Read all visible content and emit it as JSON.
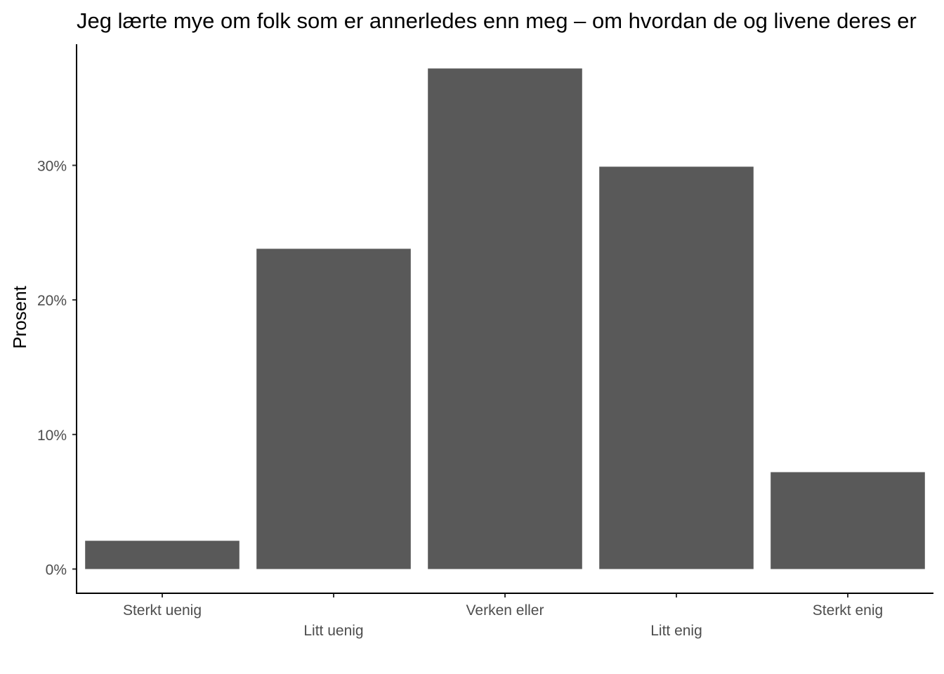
{
  "chart_data": {
    "type": "bar",
    "title": "Jeg lærte mye om folk som er annerledes enn meg – om hvordan de og livene deres er",
    "xlabel": "",
    "ylabel": "Prosent",
    "categories": [
      "Sterkt uenig",
      "Litt uenig",
      "Verken eller",
      "Litt enig",
      "Sterkt enig"
    ],
    "values": [
      2.1,
      23.8,
      37.2,
      29.9,
      7.2
    ],
    "ylim": [
      -1.8,
      39
    ],
    "yticks": [
      0,
      10,
      20,
      30
    ],
    "ytick_labels": [
      "0%",
      "10%",
      "20%",
      "30%"
    ],
    "grid": false,
    "legend": "none",
    "bar_color": "#595959"
  }
}
